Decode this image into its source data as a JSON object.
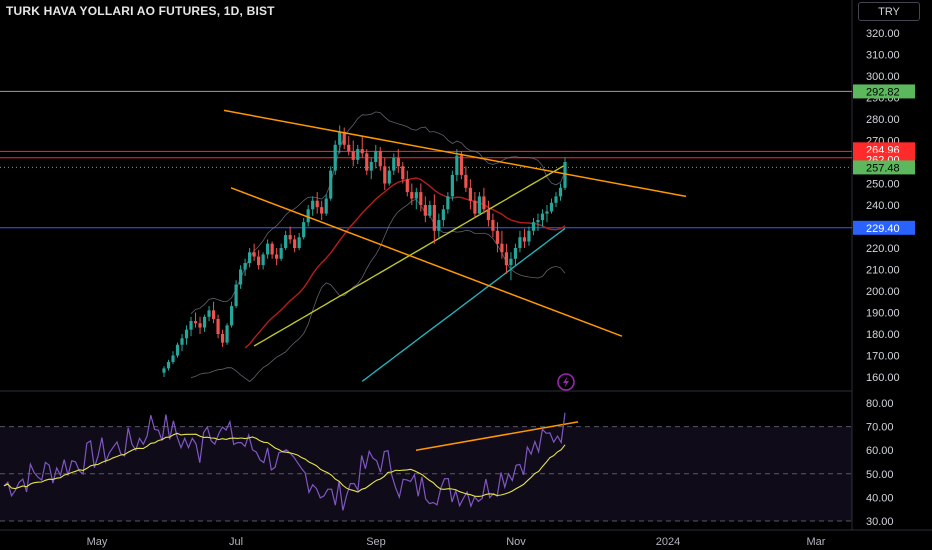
{
  "title": "TURK HAVA YOLLARI AO FUTURES, 1D, BIST",
  "currency_button": "TRY",
  "colors": {
    "background": "#000000",
    "candle_up": "#26a69a",
    "candle_down": "#ef5350",
    "trendline": "#ff9800",
    "ma_red": "#b71c1c",
    "ma_yellow": "#c0c428",
    "ma_teal": "#26b0b8",
    "bollinger": "#787b86",
    "rsi_line": "#7e57c2",
    "rsi_signal": "#e5e34a",
    "line_green": "#5cb85c",
    "line_red": "#ff2a2a",
    "line_blue": "#2962ff"
  },
  "chart_data": {
    "type": "candlestick",
    "main_panel": {
      "ylim": [
        155,
        325
      ],
      "y_ticks": [
        "320.00",
        "310.00",
        "300.00",
        "290.00",
        "280.00",
        "270.00",
        "260.00",
        "250.00",
        "240.00",
        "230.00",
        "220.00",
        "210.00",
        "200.00",
        "190.00",
        "180.00",
        "170.00",
        "160.00"
      ],
      "price_labels": [
        {
          "text": "292.82",
          "value": 292.82,
          "style": "green"
        },
        {
          "text": "264.96",
          "value": 264.96,
          "style": "red"
        },
        {
          "text": "262.00",
          "value": 262.0,
          "style": "red"
        },
        {
          "text": "257.48",
          "value": 257.48,
          "style": "green"
        },
        {
          "text": "229.40",
          "value": 229.4,
          "style": "blue"
        }
      ],
      "horizontal_lines": [
        {
          "value": 292.82,
          "color": "#9e9e9e",
          "style": "solid"
        },
        {
          "value": 264.96,
          "color": "#ff2a2a",
          "style": "solid"
        },
        {
          "value": 262.0,
          "color": "#ff2a2a",
          "style": "solid"
        },
        {
          "value": 257.48,
          "color": "#5cb85c",
          "style": "dotted"
        },
        {
          "value": 229.4,
          "color": "#2962ff",
          "style": "solid"
        }
      ],
      "candles": [
        [
          162,
          165,
          160,
          164
        ],
        [
          164,
          168,
          163,
          167
        ],
        [
          167,
          172,
          166,
          170
        ],
        [
          170,
          176,
          169,
          175
        ],
        [
          175,
          180,
          172,
          178
        ],
        [
          178,
          184,
          175,
          182
        ],
        [
          182,
          188,
          179,
          186
        ],
        [
          186,
          190,
          183,
          185
        ],
        [
          185,
          188,
          180,
          183
        ],
        [
          183,
          189,
          181,
          188
        ],
        [
          188,
          193,
          186,
          191
        ],
        [
          191,
          195,
          185,
          187
        ],
        [
          187,
          189,
          178,
          180
        ],
        [
          180,
          182,
          174,
          176
        ],
        [
          176,
          185,
          175,
          184
        ],
        [
          184,
          195,
          183,
          193
        ],
        [
          193,
          205,
          192,
          203
        ],
        [
          203,
          212,
          201,
          210
        ],
        [
          210,
          215,
          207,
          213
        ],
        [
          213,
          220,
          211,
          218
        ],
        [
          218,
          222,
          214,
          216
        ],
        [
          216,
          219,
          210,
          212
        ],
        [
          212,
          218,
          210,
          217
        ],
        [
          217,
          224,
          215,
          222
        ],
        [
          222,
          223,
          215,
          217
        ],
        [
          217,
          220,
          212,
          215
        ],
        [
          215,
          222,
          214,
          220
        ],
        [
          220,
          228,
          219,
          226
        ],
        [
          226,
          230,
          222,
          224
        ],
        [
          224,
          226,
          218,
          220
        ],
        [
          220,
          227,
          219,
          225
        ],
        [
          225,
          234,
          224,
          232
        ],
        [
          232,
          240,
          230,
          238
        ],
        [
          238,
          244,
          235,
          242
        ],
        [
          242,
          246,
          236,
          239
        ],
        [
          239,
          242,
          233,
          236
        ],
        [
          236,
          245,
          235,
          243
        ],
        [
          243,
          258,
          242,
          256
        ],
        [
          256,
          270,
          254,
          268
        ],
        [
          268,
          277,
          264,
          274
        ],
        [
          274,
          276,
          266,
          268
        ],
        [
          268,
          272,
          263,
          265
        ],
        [
          265,
          270,
          258,
          261
        ],
        [
          261,
          268,
          259,
          266
        ],
        [
          266,
          272,
          262,
          264
        ],
        [
          264,
          266,
          254,
          256
        ],
        [
          256,
          262,
          252,
          260
        ],
        [
          260,
          268,
          257,
          265
        ],
        [
          265,
          267,
          256,
          258
        ],
        [
          258,
          262,
          247,
          250
        ],
        [
          250,
          258,
          249,
          256
        ],
        [
          256,
          264,
          254,
          262
        ],
        [
          262,
          266,
          255,
          258
        ],
        [
          258,
          260,
          250,
          252
        ],
        [
          252,
          256,
          244,
          246
        ],
        [
          246,
          250,
          240,
          243
        ],
        [
          243,
          248,
          238,
          246
        ],
        [
          246,
          250,
          237,
          240
        ],
        [
          240,
          244,
          232,
          235
        ],
        [
          235,
          242,
          234,
          240
        ],
        [
          240,
          245,
          222,
          228
        ],
        [
          228,
          236,
          225,
          233
        ],
        [
          233,
          240,
          230,
          238
        ],
        [
          238,
          246,
          236,
          244
        ],
        [
          244,
          256,
          242,
          254
        ],
        [
          254,
          266,
          251,
          263
        ],
        [
          263,
          265,
          252,
          254
        ],
        [
          254,
          258,
          246,
          248
        ],
        [
          248,
          252,
          238,
          242
        ],
        [
          242,
          246,
          234,
          236
        ],
        [
          236,
          246,
          235,
          244
        ],
        [
          244,
          248,
          236,
          238
        ],
        [
          238,
          242,
          230,
          233
        ],
        [
          233,
          236,
          225,
          228
        ],
        [
          228,
          232,
          218,
          222
        ],
        [
          222,
          228,
          215,
          218
        ],
        [
          218,
          222,
          208,
          212
        ],
        [
          212,
          218,
          205,
          215
        ],
        [
          215,
          222,
          212,
          220
        ],
        [
          220,
          228,
          218,
          225
        ],
        [
          225,
          229,
          220,
          223
        ],
        [
          223,
          230,
          221,
          228
        ],
        [
          228,
          234,
          226,
          232
        ],
        [
          232,
          236,
          228,
          233
        ],
        [
          233,
          238,
          230,
          236
        ],
        [
          236,
          240,
          232,
          237
        ],
        [
          237,
          243,
          236,
          241
        ],
        [
          241,
          246,
          239,
          244
        ],
        [
          244,
          250,
          242,
          248
        ],
        [
          248,
          262,
          247,
          260
        ]
      ],
      "trendlines": [
        {
          "from_value": 284,
          "to_value": 244,
          "note": "upper descending"
        },
        {
          "from_value": 248,
          "to_value": 179,
          "note": "lower descending"
        },
        {
          "from_value": 260,
          "to_value": 234,
          "note": "short upper"
        }
      ],
      "moving_averages": [
        "red 50",
        "yellow 100",
        "teal 200"
      ],
      "watermark_icon": "lightning-icon"
    },
    "rsi_panel": {
      "ylim": [
        28,
        84
      ],
      "y_ticks": [
        "80.00",
        "70.00",
        "60.00",
        "50.00",
        "40.00",
        "30.00"
      ],
      "dashed_levels": [
        70,
        50,
        30
      ],
      "band": [
        30,
        70
      ],
      "trendline": {
        "from_value": 60,
        "to_value": 72
      }
    },
    "x_ticks": [
      "May",
      "Jul",
      "Sep",
      "Nov",
      "2024",
      "Mar"
    ]
  }
}
